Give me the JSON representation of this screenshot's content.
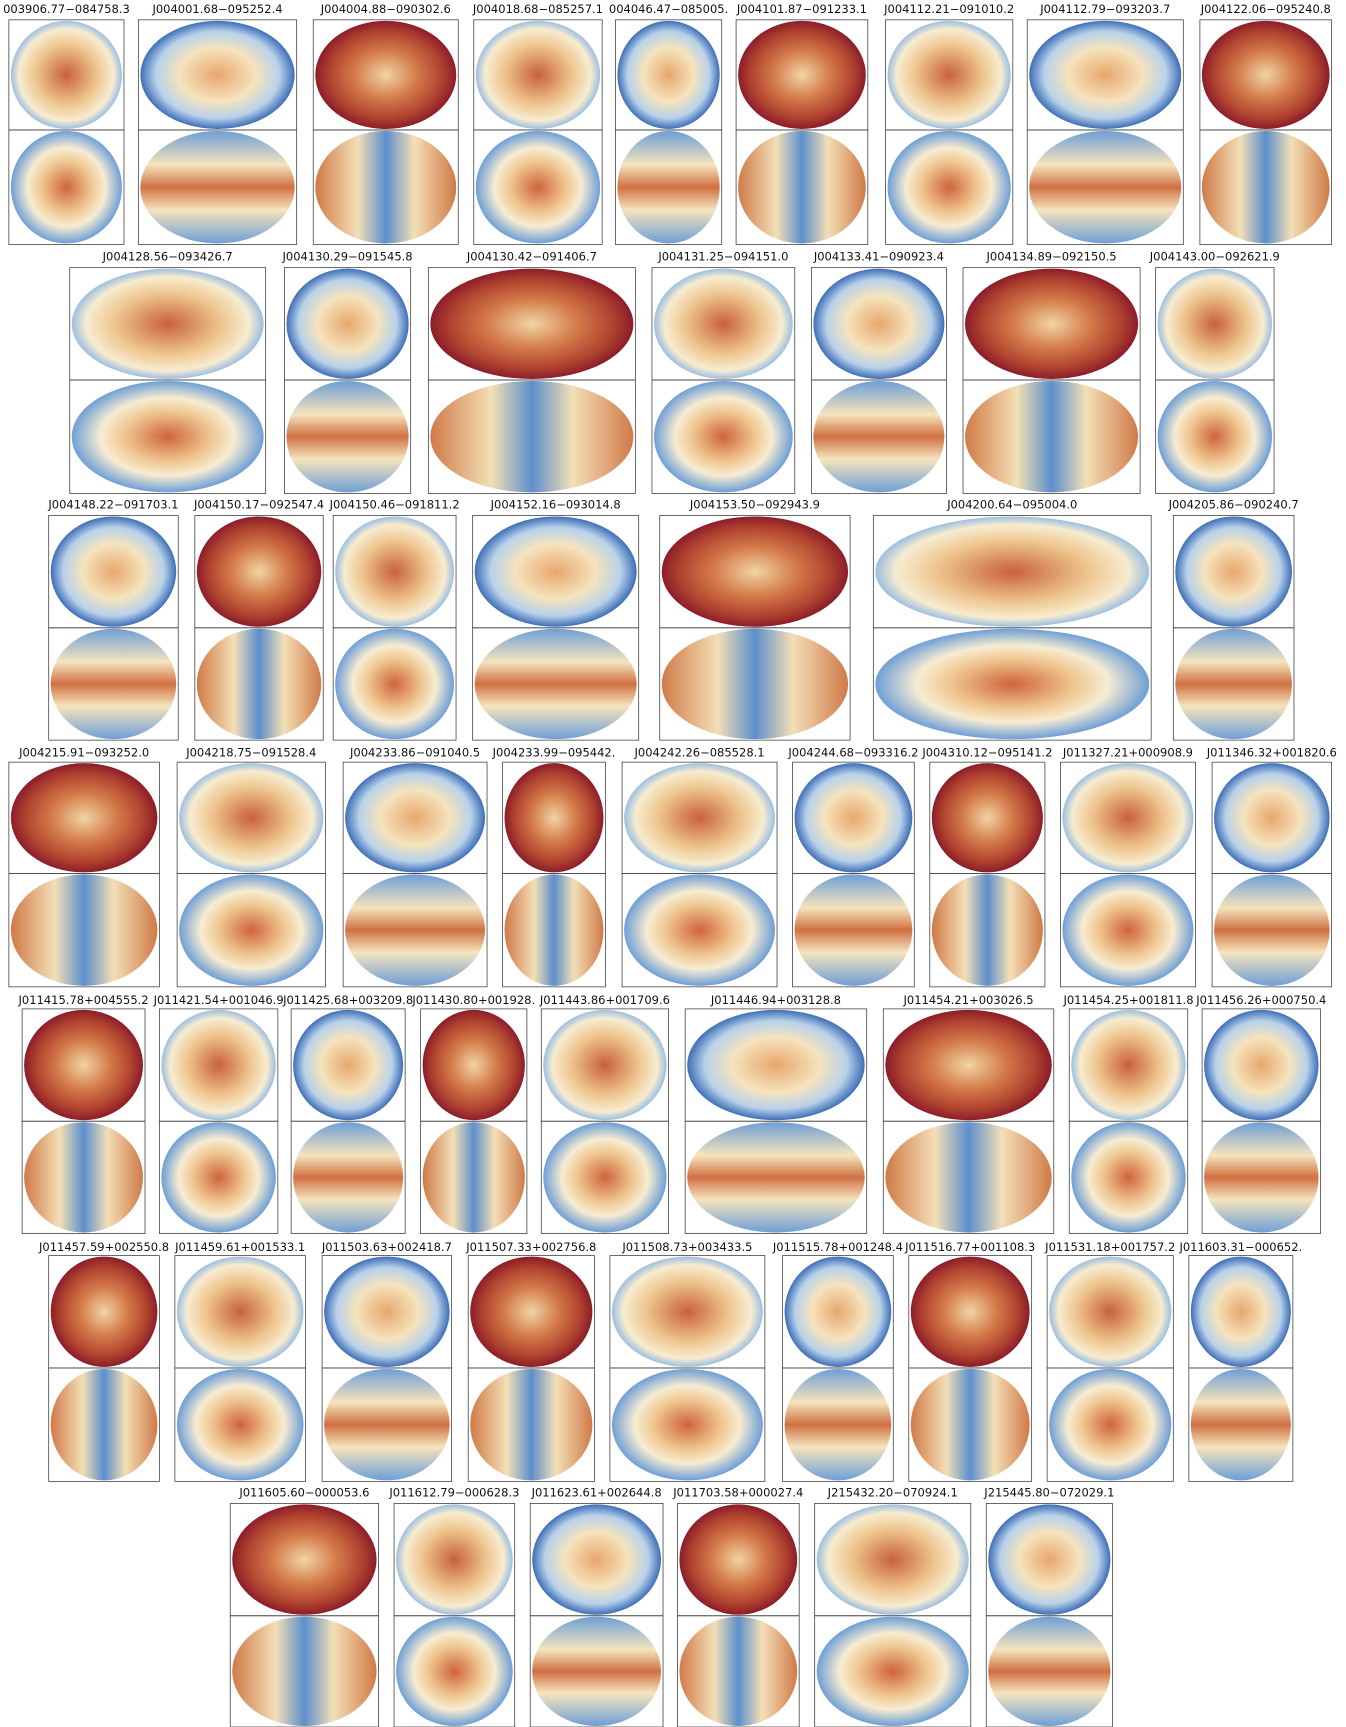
{
  "panels": [
    {
      "label": "003906.77−084758.3"
    },
    {
      "label": "J004001.68−095252.4"
    },
    {
      "label": "J004004.88−090302.6"
    },
    {
      "label": "J004018.68−085257.1"
    },
    {
      "label": "004046.47−085005."
    },
    {
      "label": "J004101.87−091233.1"
    },
    {
      "label": "J004112.21−091010.2"
    },
    {
      "label": "J004112.79−093203.7"
    },
    {
      "label": "J004122.06−095240.8"
    },
    {
      "label": "J004128.56−093426.7"
    },
    {
      "label": "J004130.29−091545.8"
    },
    {
      "label": "J004130.42−091406.7"
    },
    {
      "label": "J004131.25−094151.0"
    },
    {
      "label": "J004133.41−090923.4"
    },
    {
      "label": "J004134.89−092150.5"
    },
    {
      "label": "J004143.00−092621.9"
    },
    {
      "label": "J004148.22−091703.1"
    },
    {
      "label": "J004150.17−092547.4"
    },
    {
      "label": "J004150.46−091811.2"
    },
    {
      "label": "J004152.16−093014.8"
    },
    {
      "label": "J004153.50−092943.9"
    },
    {
      "label": "J004200.64−095004.0"
    },
    {
      "label": "J004205.86−090240.7"
    },
    {
      "label": "J004215.91−093252.0"
    },
    {
      "label": "J004218.75−091528.4"
    },
    {
      "label": "J004233.86−091040.5"
    },
    {
      "label": "J004233.99−095442."
    },
    {
      "label": "J004242.26−085528.1"
    },
    {
      "label": "J004244.68−093316.2"
    },
    {
      "label": "J004310.12−095141.2"
    },
    {
      "label": "J011327.21+000908.9"
    },
    {
      "label": "J011346.32+001820.6"
    },
    {
      "label": "J011415.78+004555.2"
    },
    {
      "label": "J011421.54+001046.9"
    },
    {
      "label": "J011425.68+003209.8"
    },
    {
      "label": "J011430.80+001928."
    },
    {
      "label": "J011443.86+001709.6"
    },
    {
      "label": "J011446.94+003128.8"
    },
    {
      "label": "J011454.21+003026.5"
    },
    {
      "label": "J011454.25+001811.8"
    },
    {
      "label": "J011456.26+000750.4"
    },
    {
      "label": "J011457.59+002550.8"
    },
    {
      "label": "J011459.61+001533.1"
    },
    {
      "label": "J011503.63+002418.7"
    },
    {
      "label": "J011507.33+002756.8"
    },
    {
      "label": "J011508.73+003433.5"
    },
    {
      "label": "J011515.78+001248.4"
    },
    {
      "label": "J011516.77+001108.3"
    },
    {
      "label": "J011531.18+001757.2"
    },
    {
      "label": "J011603.31−000652."
    },
    {
      "label": "J011605.60−000053.6"
    },
    {
      "label": "J011612.79−000628.3"
    },
    {
      "label": "J011623.61+002644.8"
    },
    {
      "label": "J011703.58+000027.4"
    },
    {
      "label": "J215432.20−070924.1"
    },
    {
      "label": "J215445.80−072029.1"
    }
  ]
}
